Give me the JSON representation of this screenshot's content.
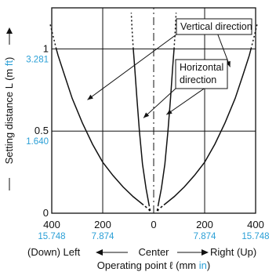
{
  "chart_data": {
    "type": "line",
    "xlabel": {
      "main": "Operating point ℓ (mm ",
      "unit_alt": "in",
      "tail": ")"
    },
    "ylabel": {
      "main": "Setting distance L (m ",
      "unit_alt": "ft",
      "tail": ")"
    },
    "xlim": [
      -400,
      400
    ],
    "ylim": [
      0,
      1.25
    ],
    "x_ticks": [
      {
        "value": -400,
        "label": "400",
        "alt": "15.748"
      },
      {
        "value": -200,
        "label": "200",
        "alt": "7.874"
      },
      {
        "value": 0,
        "label": "0",
        "alt": ""
      },
      {
        "value": 200,
        "label": "200",
        "alt": "7.874"
      },
      {
        "value": 400,
        "label": "400",
        "alt": "15.748"
      }
    ],
    "y_ticks": [
      {
        "value": 0,
        "label": "0",
        "alt": ""
      },
      {
        "value": 0.5,
        "label": "0.5",
        "alt": "1.640"
      },
      {
        "value": 1,
        "label": "1",
        "alt": "3.281"
      }
    ],
    "direction_labels": {
      "left": "(Down) Left",
      "center": "Center",
      "right": "Right (Up)"
    },
    "grid": true,
    "series": [
      {
        "name": "Vertical direction",
        "color": "#111111",
        "solid_ymax": 1.0,
        "right": [
          [
            10,
            0
          ],
          [
            20,
            0.025
          ],
          [
            40,
            0.05
          ],
          [
            80,
            0.1
          ],
          [
            120,
            0.16
          ],
          [
            160,
            0.23
          ],
          [
            200,
            0.31
          ],
          [
            240,
            0.42
          ],
          [
            280,
            0.55
          ],
          [
            320,
            0.7
          ],
          [
            350,
            0.84
          ],
          [
            375,
            0.96
          ],
          [
            382,
            1.0
          ],
          [
            395,
            1.08
          ],
          [
            406,
            1.15
          ]
        ],
        "left": [
          [
            -10,
            0
          ],
          [
            -20,
            0.025
          ],
          [
            -40,
            0.05
          ],
          [
            -80,
            0.1
          ],
          [
            -120,
            0.16
          ],
          [
            -160,
            0.23
          ],
          [
            -200,
            0.31
          ],
          [
            -240,
            0.42
          ],
          [
            -280,
            0.55
          ],
          [
            -320,
            0.7
          ],
          [
            -350,
            0.84
          ],
          [
            -375,
            0.96
          ],
          [
            -382,
            1.0
          ],
          [
            -395,
            1.08
          ],
          [
            -406,
            1.15
          ]
        ]
      },
      {
        "name": "Horizontal direction",
        "color": "#111111",
        "solid_ymax": 1.0,
        "right": [
          [
            12,
            0
          ],
          [
            18,
            0.05
          ],
          [
            30,
            0.15
          ],
          [
            44,
            0.3
          ],
          [
            56,
            0.5
          ],
          [
            66,
            0.7
          ],
          [
            75,
            0.9
          ],
          [
            80,
            1.0
          ],
          [
            85,
            1.12
          ],
          [
            88,
            1.22
          ]
        ],
        "left": [
          [
            -12,
            0
          ],
          [
            -18,
            0.05
          ],
          [
            -30,
            0.15
          ],
          [
            -44,
            0.3
          ],
          [
            -56,
            0.5
          ],
          [
            -66,
            0.7
          ],
          [
            -75,
            0.9
          ],
          [
            -80,
            1.0
          ],
          [
            -85,
            1.12
          ],
          [
            -88,
            1.22
          ]
        ]
      }
    ],
    "callouts": [
      {
        "series": "Vertical direction",
        "lines": [
          "Vertical direction"
        ],
        "targets": [
          [
            -260,
            0.69
          ],
          [
            300,
            0.89
          ]
        ]
      },
      {
        "series": "Horizontal direction",
        "lines": [
          "Horizontal",
          "direction"
        ],
        "targets": [
          [
            -40,
            0.58
          ],
          [
            50,
            0.6
          ]
        ]
      }
    ]
  }
}
